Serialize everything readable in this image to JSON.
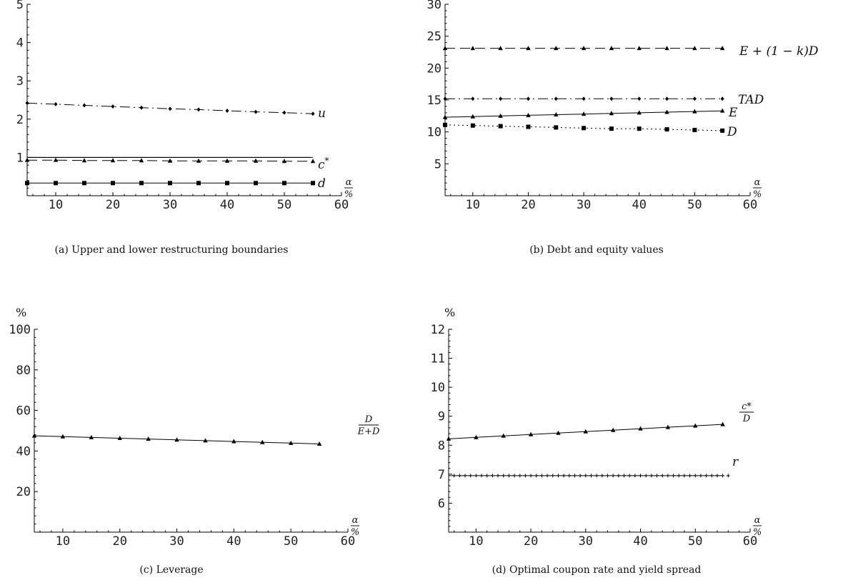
{
  "chart_data": [
    {
      "type": "line",
      "caption": "(a) Upper and lower restructuring boundaries",
      "x": [
        5,
        10,
        15,
        20,
        25,
        30,
        35,
        40,
        45,
        50,
        55
      ],
      "xlim": [
        5,
        60
      ],
      "ylim": [
        0,
        5
      ],
      "xticks": [
        10,
        20,
        30,
        40,
        50,
        60
      ],
      "yticks": [
        1,
        2,
        3,
        4,
        5
      ],
      "xlabel": {
        "num": "α",
        "den": "%"
      },
      "ylabel": "",
      "series": [
        {
          "label": "u",
          "style": "dashdot",
          "marker": "diamond",
          "values": [
            2.42,
            2.39,
            2.36,
            2.33,
            2.3,
            2.27,
            2.25,
            2.22,
            2.19,
            2.17,
            2.14
          ]
        },
        {
          "label": "",
          "style": "solid",
          "marker": "none",
          "values": [
            1.0,
            1.0,
            1.0,
            1.0,
            1.0,
            1.0,
            1.0,
            1.0,
            1.0,
            1.0,
            1.0
          ]
        },
        {
          "label": "c*",
          "style": "dashed",
          "marker": "triangle",
          "values": [
            0.93,
            0.93,
            0.92,
            0.92,
            0.92,
            0.91,
            0.91,
            0.91,
            0.91,
            0.9,
            0.9
          ]
        },
        {
          "label": "d",
          "style": "solid",
          "marker": "square",
          "values": [
            0.33,
            0.33,
            0.33,
            0.33,
            0.33,
            0.33,
            0.33,
            0.33,
            0.33,
            0.33,
            0.33
          ]
        }
      ]
    },
    {
      "type": "line",
      "caption": "(b) Debt and equity values",
      "x": [
        5,
        10,
        15,
        20,
        25,
        30,
        35,
        40,
        45,
        50,
        55
      ],
      "xlim": [
        5,
        60
      ],
      "ylim": [
        0,
        30
      ],
      "xticks": [
        10,
        20,
        30,
        40,
        50,
        60
      ],
      "yticks": [
        5,
        10,
        15,
        20,
        25,
        30
      ],
      "xlabel": {
        "num": "α",
        "den": "%"
      },
      "ylabel": "",
      "series": [
        {
          "label": "E + (1 − k)D",
          "style": "dashed",
          "marker": "triangle",
          "values": [
            23.1,
            23.1,
            23.1,
            23.1,
            23.1,
            23.1,
            23.1,
            23.1,
            23.1,
            23.1,
            23.1
          ]
        },
        {
          "label": "TAD",
          "style": "dashdot",
          "marker": "diamond",
          "values": [
            15.2,
            15.2,
            15.2,
            15.2,
            15.2,
            15.2,
            15.2,
            15.2,
            15.2,
            15.2,
            15.2
          ]
        },
        {
          "label": "E",
          "style": "solid",
          "marker": "triangle",
          "values": [
            12.3,
            12.4,
            12.5,
            12.6,
            12.7,
            12.8,
            12.9,
            13.0,
            13.1,
            13.2,
            13.3
          ]
        },
        {
          "label": "D",
          "style": "dotted",
          "marker": "square",
          "values": [
            11.1,
            11.0,
            10.9,
            10.8,
            10.7,
            10.6,
            10.5,
            10.5,
            10.4,
            10.3,
            10.2
          ]
        }
      ]
    },
    {
      "type": "line",
      "caption": "(c) Leverage",
      "x": [
        5,
        10,
        15,
        20,
        25,
        30,
        35,
        40,
        45,
        50,
        55
      ],
      "xlim": [
        5,
        60
      ],
      "ylim": [
        0,
        100
      ],
      "xticks": [
        10,
        20,
        30,
        40,
        50,
        60
      ],
      "yticks": [
        20,
        40,
        60,
        80,
        100
      ],
      "xlabel": {
        "num": "α",
        "den": "%"
      },
      "ylabel": "%",
      "series": [
        {
          "label": "D/(E+D)",
          "num": "D",
          "den": "E+D",
          "style": "solid",
          "marker": "triangle",
          "values": [
            47.5,
            47.1,
            46.7,
            46.3,
            45.9,
            45.5,
            45.1,
            44.7,
            44.3,
            43.9,
            43.5
          ]
        }
      ]
    },
    {
      "type": "line",
      "caption": "(d) Optimal coupon rate and yield spread",
      "x": [
        5,
        10,
        15,
        20,
        25,
        30,
        35,
        40,
        45,
        50,
        55
      ],
      "xlim": [
        5,
        60
      ],
      "ylim": [
        5,
        12
      ],
      "xticks": [
        10,
        20,
        30,
        40,
        50,
        60
      ],
      "yticks": [
        6,
        7,
        8,
        9,
        10,
        11,
        12
      ],
      "xlabel": {
        "num": "α",
        "den": "%"
      },
      "ylabel": "%",
      "series": [
        {
          "label": "c*/D",
          "num": "c*",
          "den": "D",
          "style": "solid",
          "marker": "triangle",
          "values": [
            8.22,
            8.27,
            8.32,
            8.37,
            8.42,
            8.47,
            8.52,
            8.57,
            8.62,
            8.67,
            8.72
          ]
        },
        {
          "label": "r",
          "style": "solid",
          "marker": "plus",
          "values": [
            6.95,
            6.95,
            6.95,
            6.95,
            6.95,
            6.95,
            6.95,
            6.95,
            6.95,
            6.95,
            6.95
          ]
        }
      ]
    }
  ]
}
